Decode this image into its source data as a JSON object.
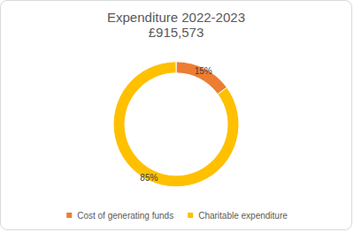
{
  "chart_data": {
    "type": "pie",
    "title": "Expenditure 2022-2023",
    "subtitle": "£915,573",
    "categories": [
      "Cost of generating funds",
      "Charitable expenditure"
    ],
    "values": [
      15,
      85
    ],
    "value_labels": [
      "15%",
      "85%"
    ],
    "colors": [
      "#ED7D31",
      "#FFC000"
    ],
    "data_labels": true,
    "legend": "bottom"
  }
}
